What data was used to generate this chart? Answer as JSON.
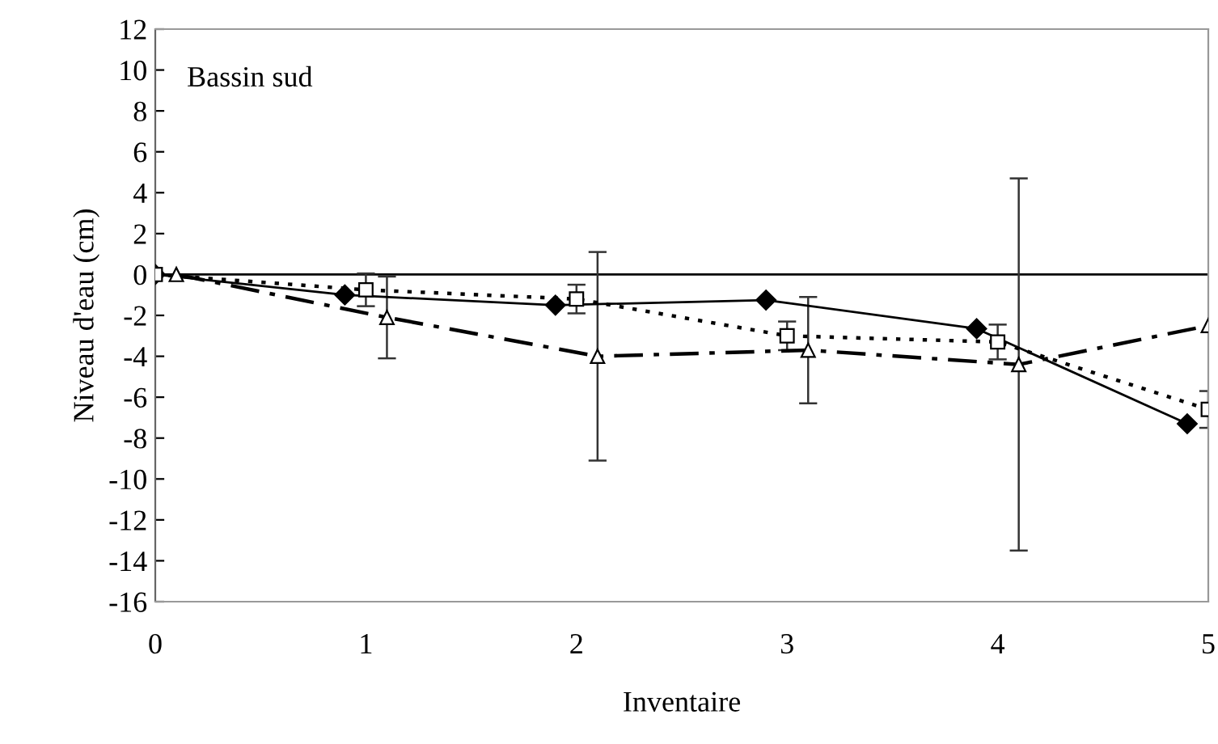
{
  "chart_data": {
    "type": "line",
    "xlabel": "Inventaire",
    "ylabel": "Niveau d'eau (cm)",
    "annotations": [
      "Bassin sud"
    ],
    "xlim": [
      0,
      5
    ],
    "xticks": [
      0,
      1,
      2,
      3,
      4,
      5
    ],
    "ylim": [
      -16,
      12
    ],
    "yticks": [
      -16,
      -14,
      -12,
      -10,
      -8,
      -6,
      -4,
      -2,
      0,
      2,
      4,
      6,
      8,
      10,
      12
    ],
    "grid": false,
    "legend": false,
    "ref_lines": [
      {
        "axis": "y",
        "value": 0,
        "color": "#000000",
        "line_style": "solid"
      }
    ],
    "series": [
      {
        "color": "#000000",
        "marker": "diamond",
        "line_style": "solid",
        "x": [
          0,
          0.9,
          1.9,
          2.9,
          3.9,
          4.9
        ],
        "values": [
          0,
          -1.0,
          -1.5,
          -1.25,
          -2.65,
          -7.3
        ]
      },
      {
        "color": "#000000",
        "marker": "square",
        "line_style": "dotted",
        "x": [
          0,
          1,
          2,
          3,
          4,
          5
        ],
        "values": [
          0,
          -0.75,
          -1.2,
          -3.0,
          -3.3,
          -6.6
        ],
        "errors": [
          null,
          0.8,
          0.7,
          0.7,
          0.85,
          0.9
        ]
      },
      {
        "color": "#000000",
        "marker": "triangle",
        "line_style": "dashdot",
        "x": [
          0.1,
          1.1,
          2.1,
          3.1,
          4.1,
          5
        ],
        "values": [
          0,
          -2.1,
          -4.0,
          -3.7,
          -4.4,
          -2.5
        ],
        "errors": [
          null,
          2.0,
          5.1,
          2.6,
          9.1,
          null
        ]
      }
    ]
  }
}
